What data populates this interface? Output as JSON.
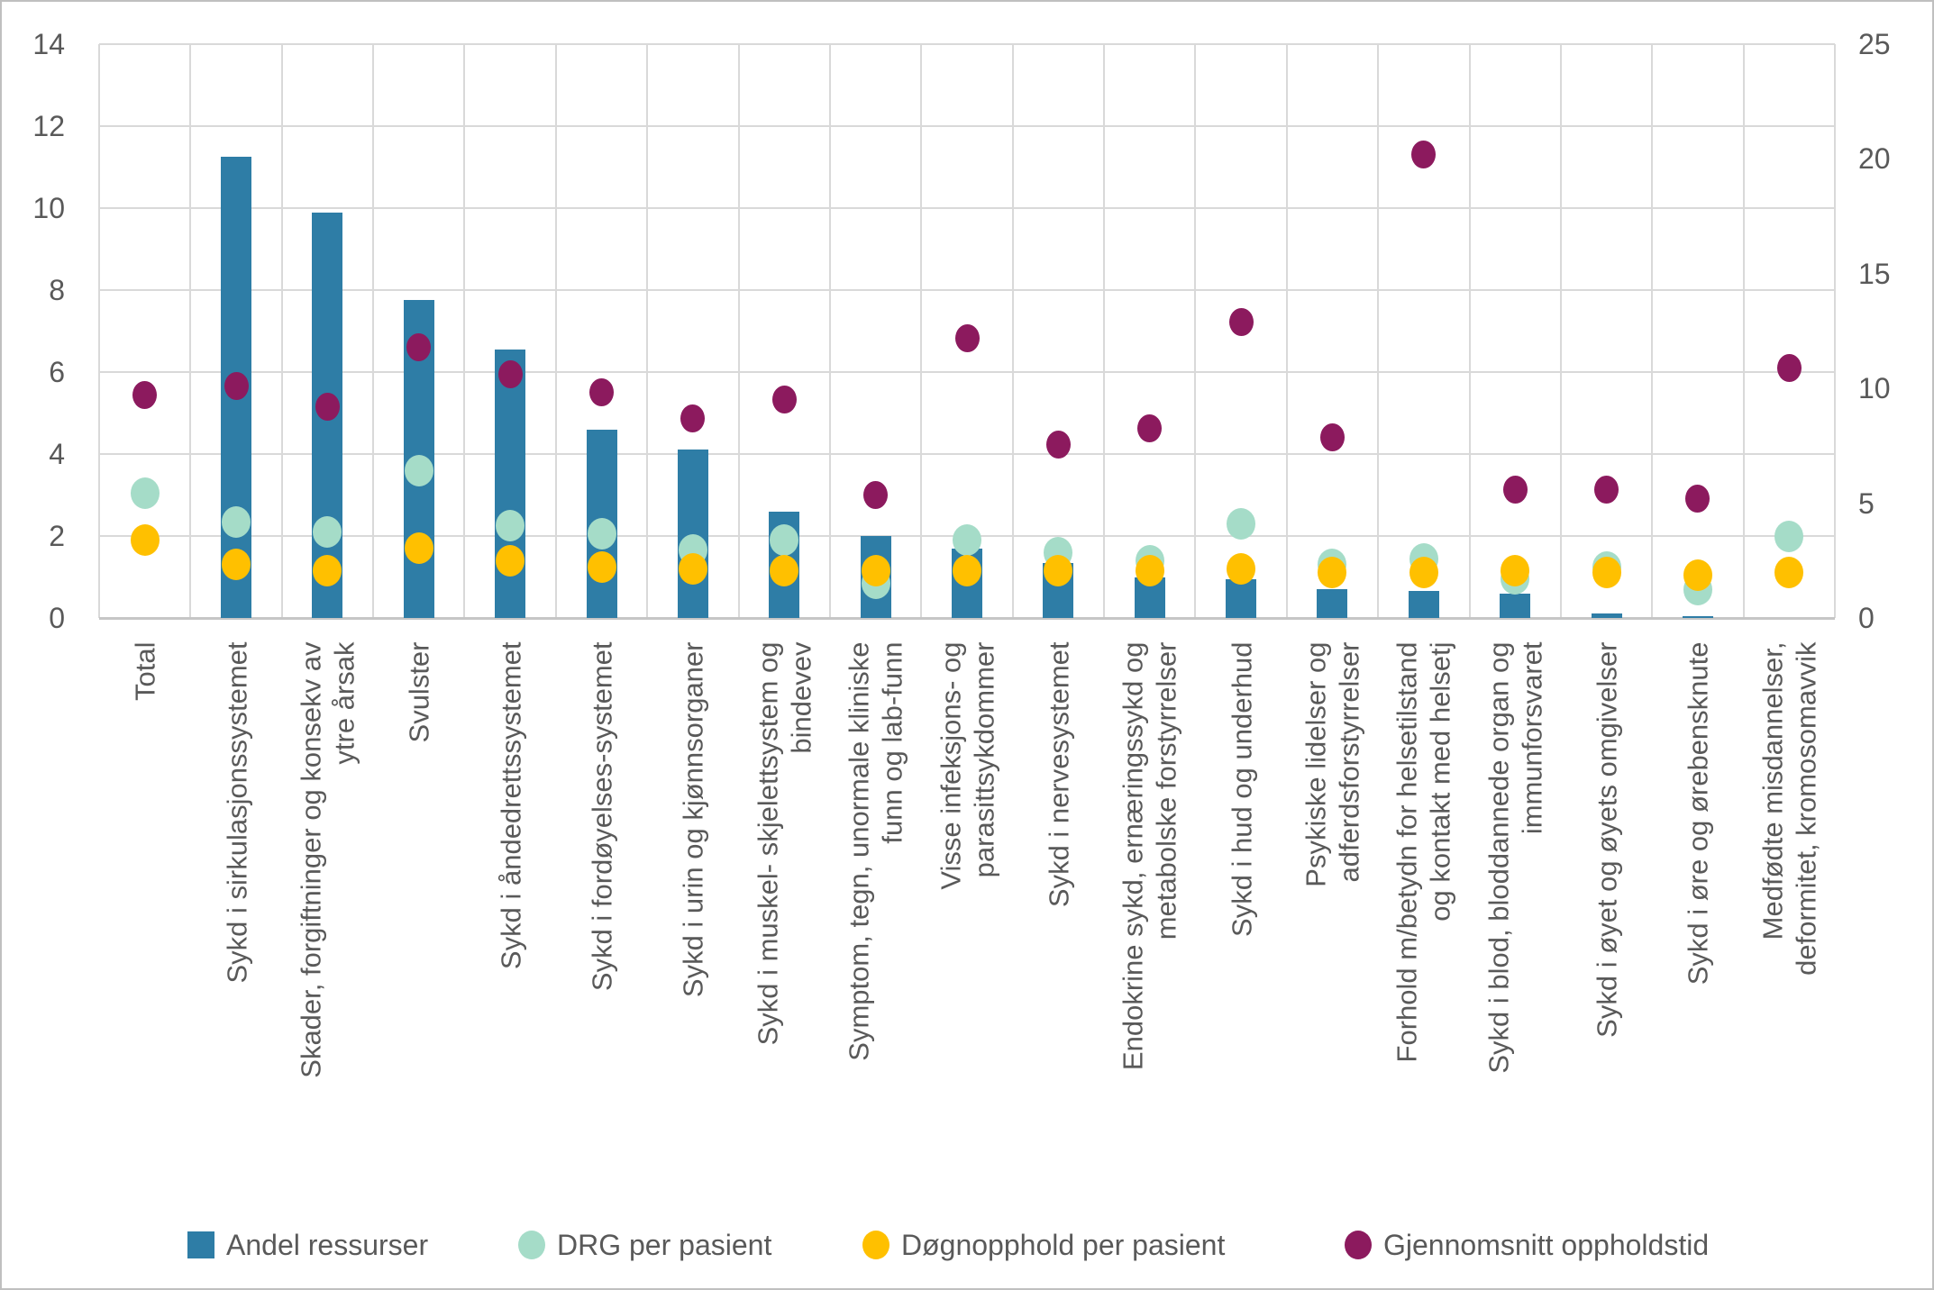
{
  "chart_data": {
    "type": "bar",
    "subtype": "combo-bar-scatter",
    "title": "",
    "xlabel": "",
    "ylabel": "",
    "grid": "on",
    "legend_position": "bottom",
    "left_axis": {
      "min": 0,
      "max": 14,
      "step": 2,
      "ticks": [
        14,
        12,
        10,
        8,
        6,
        4,
        2,
        0
      ]
    },
    "right_axis": {
      "min": 0,
      "max": 25,
      "step": 5,
      "ticks": [
        25,
        20,
        15,
        10,
        5,
        0
      ]
    },
    "categories": [
      [
        "Total"
      ],
      [
        "Sykd i sirkulasjonssystemet"
      ],
      [
        "Skader, forgiftninger og konsekv av",
        "ytre årsak"
      ],
      [
        "Svulster"
      ],
      [
        "Sykd i åndedrettssystemet"
      ],
      [
        "Sykd i fordøyelses-systemet"
      ],
      [
        "Sykd i urin og kjønnsorganer"
      ],
      [
        "Sykd i muskel- skjelettsystem og",
        "bindevev"
      ],
      [
        "Symptom, tegn, unormale kliniske",
        "funn og lab-funn"
      ],
      [
        "Visse infeksjons- og",
        "parasittsykdommer"
      ],
      [
        "Sykd i nervesystemet"
      ],
      [
        "Endokrine sykd, ernæringssykd og",
        "metabolske forstyrrelser"
      ],
      [
        "Sykd i hud og underhud"
      ],
      [
        "Psykiske lidelser og",
        "adferdsforstyrrelser"
      ],
      [
        "Forhold m/betydn for helsetilstand",
        "og kontakt med helsetj"
      ],
      [
        "Sykd i blod, bloddannede organ og",
        "immunforsvaret"
      ],
      [
        "Sykd i øyet og øyets omgivelser"
      ],
      [
        "Sykd i øre og ørebensknute"
      ],
      [
        "Medfødte misdannelser,",
        "deformitet, kromosomavvik"
      ]
    ],
    "series": [
      {
        "name": "Andel ressurser",
        "type": "bar",
        "axis": "left",
        "color": "#2e7da6",
        "values": [
          null,
          11.25,
          9.9,
          7.75,
          6.55,
          4.6,
          4.1,
          2.6,
          2.0,
          1.7,
          1.35,
          1.0,
          0.95,
          0.7,
          0.65,
          0.6,
          0.1,
          0.05,
          null
        ]
      },
      {
        "name": "DRG per pasient",
        "type": "scatter",
        "axis": "left",
        "color": "#a5dcc8",
        "values": [
          3.05,
          2.35,
          2.1,
          3.6,
          2.25,
          2.05,
          1.65,
          1.9,
          0.85,
          1.9,
          1.6,
          1.4,
          2.3,
          1.3,
          1.45,
          0.95,
          1.25,
          0.7,
          2.0
        ]
      },
      {
        "name": "Døgnopphold per pasient",
        "type": "scatter",
        "axis": "left",
        "color": "#ffc000",
        "values": [
          1.9,
          1.3,
          1.15,
          1.7,
          1.4,
          1.25,
          1.2,
          1.15,
          1.15,
          1.15,
          1.15,
          1.15,
          1.2,
          1.1,
          1.1,
          1.15,
          1.1,
          1.05,
          1.1
        ]
      },
      {
        "name": "Gjennomsnitt oppholdstid",
        "type": "scatter",
        "axis": "right",
        "color": "#8c1a5e",
        "values": [
          9.7,
          10.1,
          9.2,
          11.8,
          10.6,
          9.85,
          8.7,
          9.5,
          5.35,
          12.2,
          7.55,
          8.25,
          12.9,
          7.85,
          20.2,
          5.6,
          5.6,
          5.2,
          10.9
        ]
      }
    ],
    "colors": {
      "grid": "#d9d9d9",
      "axis_line": "#c6c6c6",
      "text": "#595959",
      "background": "#ffffff",
      "border": "#bfbfbf"
    }
  },
  "legend": {
    "items": [
      {
        "label": "Andel ressurser",
        "shape": "square",
        "color": "#2e7da6"
      },
      {
        "label": "DRG per pasient",
        "shape": "circle",
        "color": "#a5dcc8"
      },
      {
        "label": "Døgnopphold per pasient",
        "shape": "circle",
        "color": "#ffc000"
      },
      {
        "label": "Gjennomsnitt oppholdstid",
        "shape": "circle",
        "color": "#8c1a5e"
      }
    ]
  }
}
